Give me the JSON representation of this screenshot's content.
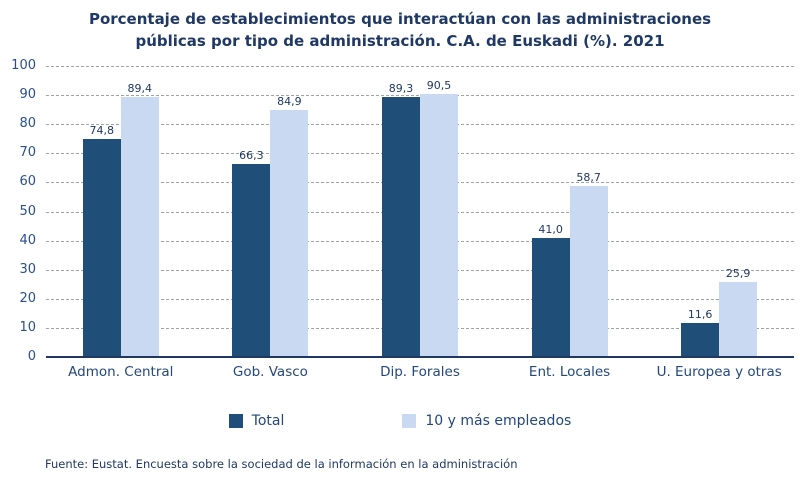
{
  "title": {
    "line1": "Porcentaje de establecimientos que interactúan con las administraciones",
    "line2": "públicas por tipo de administración. C.A. de Euskadi (%). 2021"
  },
  "footer": "Fuente: Eustat. Encuesta sobre la sociedad de la información en la administración",
  "colors": {
    "series_total": "#1F4E79",
    "series_10plus": "#C9D9F1",
    "text_navy": "#1F3864",
    "gridline": "#9AA3AE"
  },
  "chart_data": {
    "type": "bar",
    "title": "Porcentaje de establecimientos que interactúan con las administraciones públicas por tipo de administración. C.A. de Euskadi (%). 2021",
    "categories": [
      "Admon. Central",
      "Gob. Vasco",
      "Dip. Forales",
      "Ent. Locales",
      "U. Europea y otras"
    ],
    "series": [
      {
        "name": "Total",
        "color": "#1F4E79",
        "values": [
          74.8,
          66.3,
          89.3,
          41.0,
          11.6
        ],
        "labels": [
          "74,8",
          "66,3",
          "89,3",
          "41,0",
          "11,6"
        ]
      },
      {
        "name": "10 y más empleados",
        "color": "#C9D9F1",
        "values": [
          89.4,
          84.9,
          90.5,
          58.7,
          25.9
        ],
        "labels": [
          "89,4",
          "84,9",
          "90,5",
          "58,7",
          "25,9"
        ]
      }
    ],
    "ylabel": "",
    "xlabel": "",
    "ylim": [
      0,
      100
    ],
    "yticks": [
      0,
      10,
      20,
      30,
      40,
      50,
      60,
      70,
      80,
      90,
      100
    ],
    "grid": "horizontal-dashed",
    "legend_position": "bottom-center"
  }
}
